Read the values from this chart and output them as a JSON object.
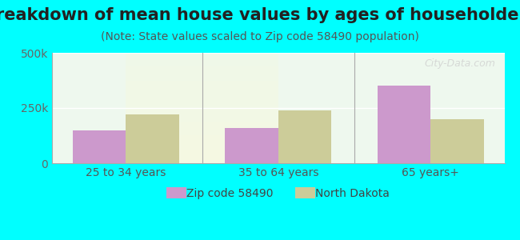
{
  "title": "Breakdown of mean house values by ages of householders",
  "subtitle": "(Note: State values scaled to Zip code 58490 population)",
  "categories": [
    "25 to 34 years",
    "35 to 64 years",
    "65 years+"
  ],
  "series": [
    {
      "label": "Zip code 58490",
      "color": "#cc99cc",
      "values": [
        150000,
        160000,
        350000
      ]
    },
    {
      "label": "North Dakota",
      "color": "#cccc99",
      "values": [
        220000,
        240000,
        200000
      ]
    }
  ],
  "ylim": [
    0,
    500000
  ],
  "yticks": [
    0,
    250000,
    500000
  ],
  "ytick_labels": [
    "0",
    "250k",
    "500k"
  ],
  "bar_width": 0.35,
  "background_color": "#00ffff",
  "plot_bg_gradient_top": "#e8ffe8",
  "plot_bg_gradient_bottom": "#f5f5e0",
  "title_fontsize": 15,
  "subtitle_fontsize": 10,
  "tick_fontsize": 10,
  "legend_fontsize": 10,
  "watermark": "City-Data.com"
}
